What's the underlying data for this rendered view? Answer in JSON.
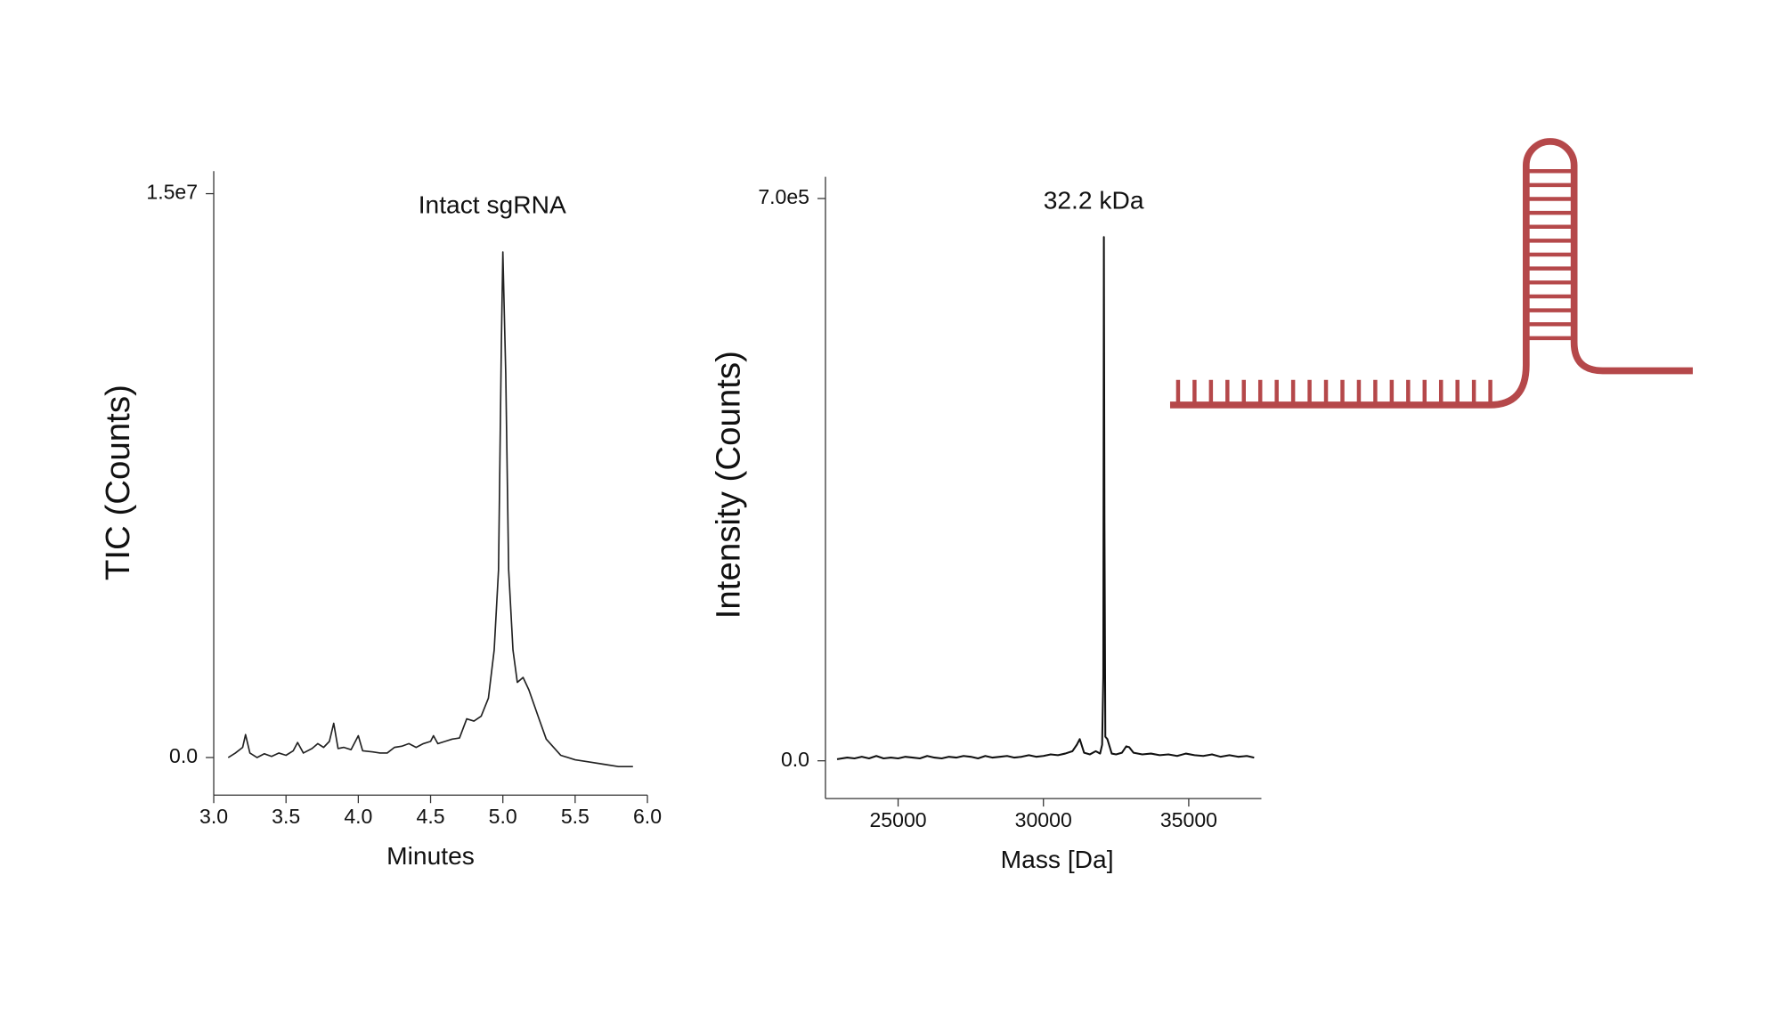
{
  "chart_data": [
    {
      "type": "line",
      "annotation": "Intact sgRNA",
      "xlabel": "Minutes",
      "ylabel": "TIC (Counts)",
      "color": "#222222",
      "xlim": [
        3,
        6
      ],
      "ylim": [
        -1000000,
        15600000
      ],
      "xticks": [
        {
          "value": 3,
          "label": "3.0"
        },
        3.5,
        {
          "value": 4,
          "label": "4.0"
        },
        4.5,
        {
          "value": 5,
          "label": "5.0"
        },
        5.5,
        {
          "value": 6,
          "label": "6.0"
        }
      ],
      "yticks": [
        {
          "value": 0,
          "label": "0.0"
        },
        {
          "value": 15000000,
          "label": "1.5e7"
        }
      ],
      "x": [
        3.1,
        3.15,
        3.2,
        3.22,
        3.25,
        3.3,
        3.35,
        3.4,
        3.45,
        3.5,
        3.55,
        3.58,
        3.62,
        3.68,
        3.72,
        3.76,
        3.8,
        3.83,
        3.86,
        3.9,
        3.95,
        4.0,
        4.03,
        4.1,
        4.15,
        4.2,
        4.25,
        4.3,
        4.35,
        4.4,
        4.45,
        4.5,
        4.52,
        4.55,
        4.6,
        4.65,
        4.7,
        4.75,
        4.8,
        4.85,
        4.9,
        4.94,
        4.97,
        4.99,
        5.0,
        5.02,
        5.04,
        5.07,
        5.1,
        5.14,
        5.18,
        5.25,
        5.3,
        5.4,
        5.5,
        5.6,
        5.7,
        5.8,
        5.9
      ],
      "values": [
        0,
        120000,
        270000,
        610000,
        120000,
        0,
        100000,
        30000,
        120000,
        60000,
        180000,
        400000,
        120000,
        240000,
        370000,
        270000,
        430000,
        910000,
        240000,
        270000,
        210000,
        580000,
        180000,
        150000,
        120000,
        120000,
        270000,
        300000,
        370000,
        270000,
        370000,
        430000,
        580000,
        370000,
        430000,
        490000,
        520000,
        1030000,
        970000,
        1100000,
        1580000,
        2860000,
        4990000,
        11100000,
        13450000,
        10200000,
        5000000,
        2860000,
        2000000,
        2130000,
        1800000,
        1030000,
        490000,
        60000,
        -60000,
        -120000,
        -180000,
        -240000,
        -240000
      ]
    },
    {
      "type": "line",
      "annotation": "32.2 kDa",
      "xlabel": "Mass [Da]",
      "ylabel": "Intensity (Counts)",
      "color": "#111111",
      "xlim": [
        22500,
        37500
      ],
      "ylim": [
        -47000,
        727000
      ],
      "xticks": [
        25000,
        30000,
        35000
      ],
      "yticks": [
        {
          "value": 0,
          "label": "0.0"
        },
        {
          "value": 700000,
          "label": "7.0e5"
        }
      ],
      "x": [
        22900,
        23250,
        23500,
        23750,
        24000,
        24250,
        24500,
        24750,
        25000,
        25250,
        25500,
        25750,
        26000,
        26250,
        26500,
        26750,
        27000,
        27250,
        27500,
        27750,
        28000,
        28250,
        28500,
        28750,
        29000,
        29250,
        29500,
        29750,
        30000,
        30250,
        30500,
        30750,
        31000,
        31150,
        31250,
        31400,
        31600,
        31800,
        31950,
        32020,
        32060,
        32080,
        32100,
        32130,
        32200,
        32350,
        32500,
        32700,
        32850,
        32950,
        33100,
        33400,
        33700,
        34000,
        34300,
        34600,
        34900,
        35200,
        35500,
        35800,
        36100,
        36400,
        36700,
        37000,
        37250
      ],
      "values": [
        2000,
        4000,
        3000,
        5000,
        3000,
        6000,
        3000,
        4000,
        3000,
        5000,
        4000,
        3000,
        6000,
        4000,
        3000,
        5000,
        4000,
        6000,
        5000,
        3000,
        6000,
        4000,
        5000,
        6000,
        4000,
        5000,
        7000,
        5000,
        6000,
        8000,
        7000,
        9000,
        12000,
        20000,
        27000,
        10000,
        8000,
        12000,
        9000,
        20000,
        105000,
        652000,
        300000,
        30000,
        27000,
        9000,
        8000,
        10000,
        18000,
        17000,
        10000,
        8000,
        9000,
        7000,
        8000,
        6000,
        9000,
        7000,
        6000,
        8000,
        5000,
        7000,
        5000,
        6000,
        4000
      ]
    }
  ]
}
